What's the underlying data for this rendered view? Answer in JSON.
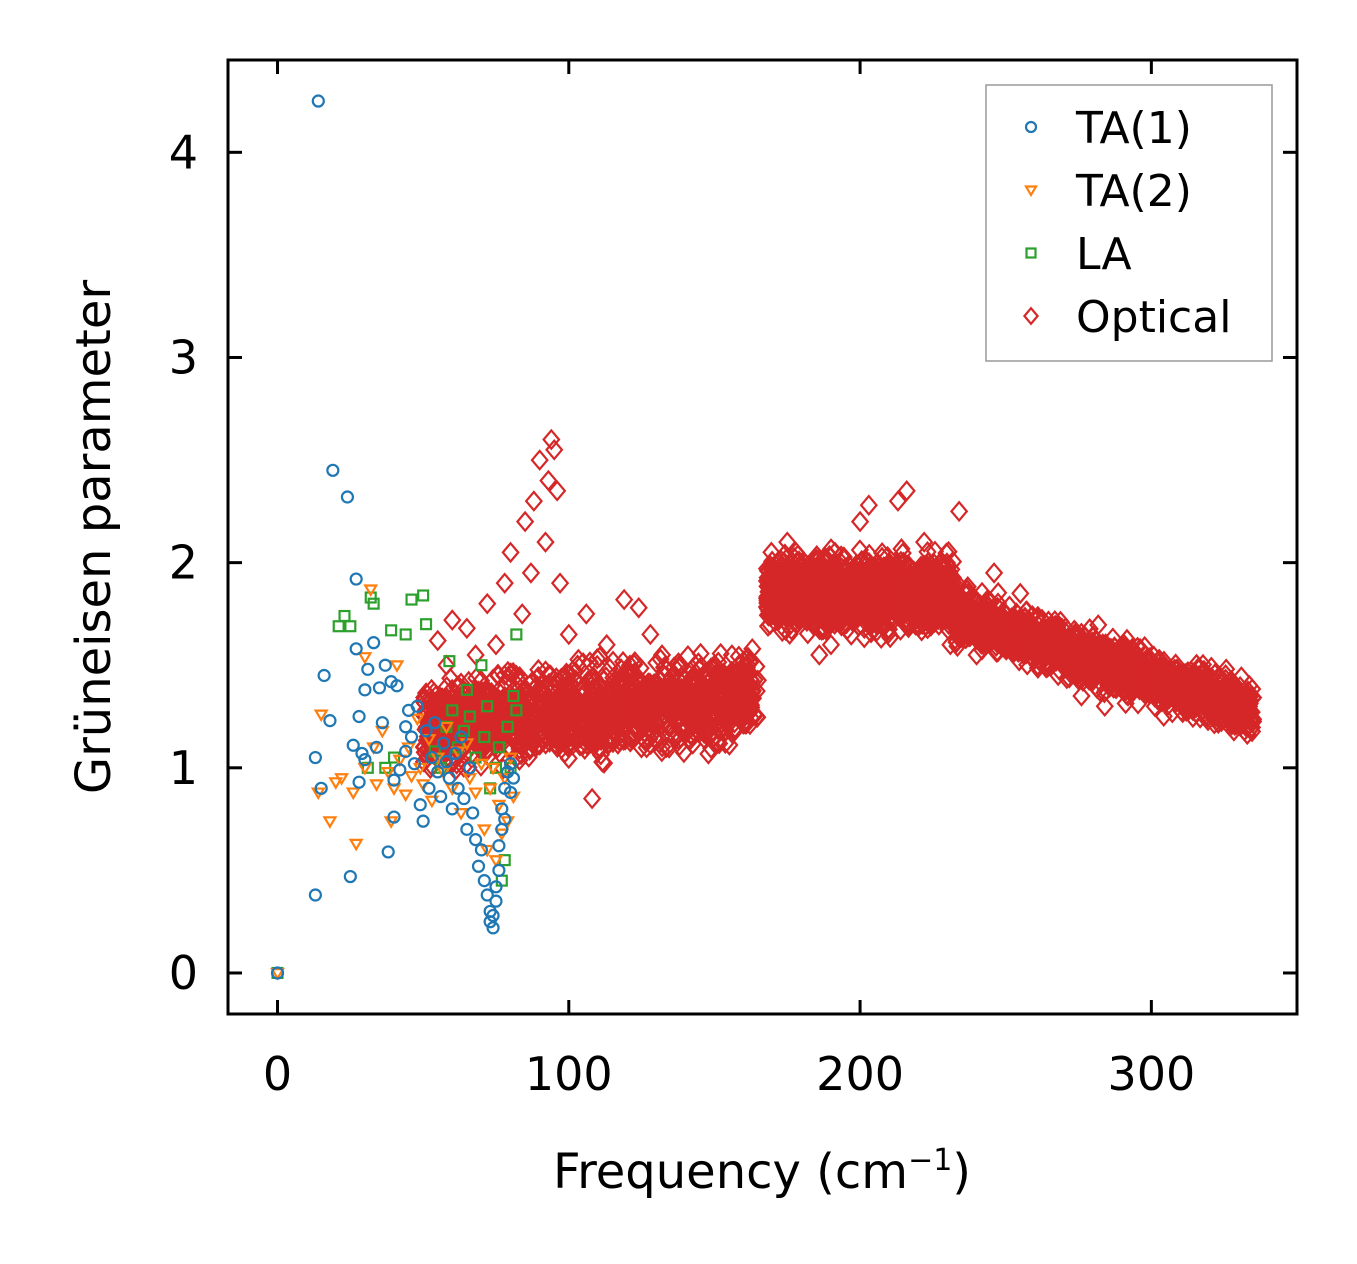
{
  "chart_data": {
    "type": "scatter",
    "title": "",
    "xlabel": "Frequency (cm",
    "xlabel_superscript": "−1",
    "xlabel_suffix": ")",
    "ylabel": "Grüneisen parameter",
    "xlim": [
      -17,
      350
    ],
    "ylim": [
      -0.2,
      4.45
    ],
    "x_ticks": [
      0,
      100,
      200,
      300
    ],
    "x_tick_labels": [
      "0",
      "100",
      "200",
      "300"
    ],
    "y_ticks": [
      0,
      1,
      2,
      3,
      4
    ],
    "y_tick_labels": [
      "0",
      "1",
      "2",
      "3",
      "4"
    ],
    "grid": false,
    "legend_position": "top-right",
    "series": [
      {
        "name": "TA(1)",
        "color": "#1f77b4",
        "marker": "circle",
        "points": [
          [
            0,
            0
          ],
          [
            13,
            0.38
          ],
          [
            13,
            1.05
          ],
          [
            14,
            4.25
          ],
          [
            15,
            0.9
          ],
          [
            16,
            1.45
          ],
          [
            18,
            1.23
          ],
          [
            19,
            2.45
          ],
          [
            24,
            2.32
          ],
          [
            25,
            0.47
          ],
          [
            26,
            1.11
          ],
          [
            27,
            1.92
          ],
          [
            27,
            1.58
          ],
          [
            28,
            1.25
          ],
          [
            28,
            0.93
          ],
          [
            29,
            1.07
          ],
          [
            30,
            1.04
          ],
          [
            30,
            1.38
          ],
          [
            31,
            1.48
          ],
          [
            33,
            1.61
          ],
          [
            34,
            1.1
          ],
          [
            35,
            1.39
          ],
          [
            36,
            1.22
          ],
          [
            37,
            1.5
          ],
          [
            38,
            0.59
          ],
          [
            39,
            1.42
          ],
          [
            40,
            0.76
          ],
          [
            40,
            0.94
          ],
          [
            41,
            1.4
          ],
          [
            42,
            0.99
          ],
          [
            44,
            1.2
          ],
          [
            44,
            1.08
          ],
          [
            45,
            1.28
          ],
          [
            46,
            1.15
          ],
          [
            47,
            1.02
          ],
          [
            48,
            1.3
          ],
          [
            49,
            0.82
          ],
          [
            50,
            0.74
          ],
          [
            51,
            1.18
          ],
          [
            52,
            0.9
          ],
          [
            53,
            1.05
          ],
          [
            54,
            1.22
          ],
          [
            55,
            0.98
          ],
          [
            56,
            0.86
          ],
          [
            57,
            1.12
          ],
          [
            58,
            1.03
          ],
          [
            59,
            0.95
          ],
          [
            60,
            0.8
          ],
          [
            61,
            1.07
          ],
          [
            62,
            0.9
          ],
          [
            63,
            1.15
          ],
          [
            64,
            0.85
          ],
          [
            65,
            0.7
          ],
          [
            66,
            1.0
          ],
          [
            67,
            0.78
          ],
          [
            68,
            0.65
          ],
          [
            69,
            0.52
          ],
          [
            70,
            0.6
          ],
          [
            71,
            0.45
          ],
          [
            72,
            0.38
          ],
          [
            73,
            0.3
          ],
          [
            73,
            0.25
          ],
          [
            74,
            0.22
          ],
          [
            74,
            0.28
          ],
          [
            75,
            0.35
          ],
          [
            75,
            0.42
          ],
          [
            76,
            0.5
          ],
          [
            76,
            0.62
          ],
          [
            77,
            0.7
          ],
          [
            77,
            0.8
          ],
          [
            78,
            0.9
          ],
          [
            78,
            0.75
          ],
          [
            79,
            0.98
          ],
          [
            80,
            0.88
          ],
          [
            80,
            1.02
          ],
          [
            81,
            0.95
          ]
        ]
      },
      {
        "name": "TA(2)",
        "color": "#ff7f0e",
        "marker": "triangle-down",
        "points": [
          [
            0,
            0
          ],
          [
            14,
            0.88
          ],
          [
            15,
            1.26
          ],
          [
            18,
            0.74
          ],
          [
            20,
            0.93
          ],
          [
            22,
            0.95
          ],
          [
            26,
            0.88
          ],
          [
            27,
            0.63
          ],
          [
            30,
            1.54
          ],
          [
            30,
            1.0
          ],
          [
            32,
            1.87
          ],
          [
            33,
            1.1
          ],
          [
            34,
            0.92
          ],
          [
            36,
            1.18
          ],
          [
            38,
            0.98
          ],
          [
            39,
            0.74
          ],
          [
            40,
            0.9
          ],
          [
            41,
            1.5
          ],
          [
            42,
            1.04
          ],
          [
            44,
            0.87
          ],
          [
            45,
            1.1
          ],
          [
            46,
            0.96
          ],
          [
            48,
            1.24
          ],
          [
            49,
            1.0
          ],
          [
            50,
            0.92
          ],
          [
            52,
            1.14
          ],
          [
            53,
            0.84
          ],
          [
            55,
            1.05
          ],
          [
            57,
            0.98
          ],
          [
            58,
            1.2
          ],
          [
            60,
            0.9
          ],
          [
            62,
            1.08
          ],
          [
            63,
            0.78
          ],
          [
            65,
            1.12
          ],
          [
            66,
            0.95
          ],
          [
            68,
            0.88
          ],
          [
            70,
            1.02
          ],
          [
            71,
            0.7
          ],
          [
            72,
            0.6
          ],
          [
            73,
            0.9
          ],
          [
            74,
            1.0
          ],
          [
            75,
            0.55
          ],
          [
            76,
            0.82
          ],
          [
            77,
            0.68
          ],
          [
            78,
            0.95
          ],
          [
            79,
            0.74
          ],
          [
            80,
            1.05
          ],
          [
            81,
            0.86
          ]
        ]
      },
      {
        "name": "LA",
        "color": "#2ca02c",
        "marker": "square",
        "points": [
          [
            0,
            0
          ],
          [
            21,
            1.69
          ],
          [
            23,
            1.74
          ],
          [
            25,
            1.69
          ],
          [
            31,
            1.0
          ],
          [
            32,
            1.83
          ],
          [
            33,
            1.8
          ],
          [
            37,
            1.0
          ],
          [
            39,
            1.67
          ],
          [
            40,
            1.05
          ],
          [
            44,
            1.65
          ],
          [
            46,
            1.82
          ],
          [
            50,
            1.84
          ],
          [
            51,
            1.7
          ],
          [
            54,
            1.08
          ],
          [
            56,
            1.0
          ],
          [
            58,
            1.2
          ],
          [
            59,
            1.52
          ],
          [
            60,
            1.28
          ],
          [
            62,
            1.1
          ],
          [
            64,
            1.18
          ],
          [
            65,
            1.38
          ],
          [
            66,
            1.25
          ],
          [
            68,
            1.05
          ],
          [
            70,
            1.5
          ],
          [
            71,
            1.15
          ],
          [
            72,
            1.3
          ],
          [
            73,
            0.9
          ],
          [
            75,
            1.0
          ],
          [
            76,
            1.1
          ],
          [
            77,
            0.45
          ],
          [
            78,
            0.55
          ],
          [
            79,
            1.2
          ],
          [
            80,
            1.0
          ],
          [
            81,
            1.35
          ],
          [
            82,
            1.65
          ],
          [
            82,
            1.28
          ]
        ]
      },
      {
        "name": "Optical",
        "color": "#d62728",
        "marker": "diamond",
        "points": [
          [
            52,
            1.15
          ],
          [
            55,
            1.62
          ],
          [
            58,
            1.5
          ],
          [
            60,
            1.72
          ],
          [
            62,
            1.4
          ],
          [
            65,
            1.68
          ],
          [
            68,
            1.55
          ],
          [
            70,
            1.3
          ],
          [
            72,
            1.8
          ],
          [
            75,
            1.6
          ],
          [
            78,
            1.9
          ],
          [
            80,
            2.05
          ],
          [
            82,
            1.45
          ],
          [
            84,
            1.75
          ],
          [
            85,
            2.2
          ],
          [
            87,
            1.95
          ],
          [
            88,
            2.3
          ],
          [
            90,
            2.5
          ],
          [
            92,
            2.1
          ],
          [
            93,
            2.4
          ],
          [
            94,
            2.6
          ],
          [
            95,
            2.55
          ],
          [
            96,
            2.35
          ],
          [
            97,
            1.9
          ],
          [
            100,
            1.65
          ],
          [
            103,
            1.5
          ],
          [
            106,
            1.75
          ],
          [
            108,
            0.85
          ],
          [
            110,
            1.4
          ],
          [
            113,
            1.6
          ],
          [
            116,
            1.35
          ],
          [
            119,
            1.82
          ],
          [
            121,
            1.5
          ],
          [
            124,
            1.78
          ],
          [
            126,
            1.2
          ],
          [
            128,
            1.65
          ],
          [
            130,
            1.3
          ],
          [
            132,
            1.55
          ],
          [
            135,
            1.4
          ],
          [
            138,
            1.5
          ],
          [
            140,
            1.2
          ],
          [
            143,
            1.45
          ],
          [
            146,
            1.3
          ],
          [
            150,
            1.5
          ],
          [
            153,
            1.42
          ],
          [
            156,
            1.55
          ],
          [
            160,
            1.52
          ],
          [
            163,
            1.58
          ],
          [
            170,
            1.85
          ],
          [
            172,
            1.95
          ],
          [
            175,
            2.1
          ],
          [
            178,
            2.05
          ],
          [
            180,
            1.9
          ],
          [
            183,
            1.8
          ],
          [
            186,
            1.55
          ],
          [
            190,
            1.6
          ],
          [
            194,
            1.72
          ],
          [
            198,
            1.9
          ],
          [
            200,
            2.2
          ],
          [
            203,
            2.28
          ],
          [
            206,
            1.85
          ],
          [
            210,
            2.0
          ],
          [
            213,
            2.3
          ],
          [
            216,
            2.35
          ],
          [
            219,
            1.75
          ],
          [
            222,
            2.1
          ],
          [
            225,
            1.9
          ],
          [
            228,
            2.0
          ],
          [
            231,
            1.6
          ],
          [
            234,
            2.25
          ],
          [
            237,
            1.85
          ],
          [
            240,
            1.55
          ],
          [
            243,
            1.8
          ],
          [
            246,
            1.95
          ],
          [
            249,
            1.65
          ],
          [
            252,
            1.7
          ],
          [
            255,
            1.85
          ],
          [
            258,
            1.6
          ],
          [
            261,
            1.5
          ],
          [
            264,
            1.55
          ],
          [
            268,
            1.45
          ],
          [
            272,
            1.55
          ],
          [
            276,
            1.35
          ],
          [
            280,
            1.5
          ],
          [
            284,
            1.3
          ],
          [
            288,
            1.42
          ],
          [
            292,
            1.35
          ],
          [
            296,
            1.45
          ],
          [
            300,
            1.4
          ],
          [
            304,
            1.35
          ],
          [
            308,
            1.48
          ],
          [
            312,
            1.4
          ],
          [
            316,
            1.35
          ],
          [
            320,
            1.32
          ],
          [
            324,
            1.3
          ],
          [
            328,
            1.3
          ],
          [
            331,
            1.28
          ],
          [
            334,
            1.27
          ]
        ]
      }
    ],
    "optical_bands": [
      {
        "x": [
          50,
          165
        ],
        "y_center_start": 1.2,
        "y_center_end": 1.35,
        "halfwidth": 0.3
      },
      {
        "x": [
          168,
          232
        ],
        "y_center_start": 1.85,
        "y_center_end": 1.85,
        "halfwidth": 0.25
      },
      {
        "x": [
          232,
          335
        ],
        "y_center_start": 1.75,
        "y_center_end": 1.28,
        "halfwidth": 0.18
      }
    ]
  }
}
